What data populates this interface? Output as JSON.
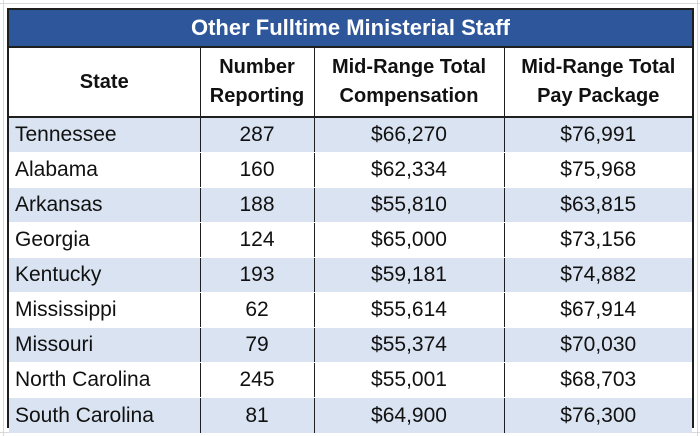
{
  "title": "Other Fulltime Ministerial Staff",
  "headers": {
    "state": "State",
    "number_line1": "Number",
    "number_line2": "Reporting",
    "comp_line1": "Mid-Range Total",
    "comp_line2": "Compensation",
    "pay_line1": "Mid-Range Total",
    "pay_line2": "Pay Package"
  },
  "rows": [
    {
      "state": "Tennessee",
      "number": "287",
      "compensation": "$66,270",
      "pay_package": "$76,991"
    },
    {
      "state": "Alabama",
      "number": "160",
      "compensation": "$62,334",
      "pay_package": "$75,968"
    },
    {
      "state": "Arkansas",
      "number": "188",
      "compensation": "$55,810",
      "pay_package": "$63,815"
    },
    {
      "state": "Georgia",
      "number": "124",
      "compensation": "$65,000",
      "pay_package": "$73,156"
    },
    {
      "state": "Kentucky",
      "number": "193",
      "compensation": "$59,181",
      "pay_package": "$74,882"
    },
    {
      "state": "Mississippi",
      "number": "62",
      "compensation": "$55,614",
      "pay_package": "$67,914"
    },
    {
      "state": "Missouri",
      "number": "79",
      "compensation": "$55,374",
      "pay_package": "$70,030"
    },
    {
      "state": "North Carolina",
      "number": "245",
      "compensation": "$55,001",
      "pay_package": "$68,703"
    },
    {
      "state": "South Carolina",
      "number": "81",
      "compensation": "$64,900",
      "pay_package": "$76,300"
    }
  ],
  "colors": {
    "title_bg": "#2e569a",
    "band": "#dae3f1",
    "border": "#1f1f1f"
  }
}
